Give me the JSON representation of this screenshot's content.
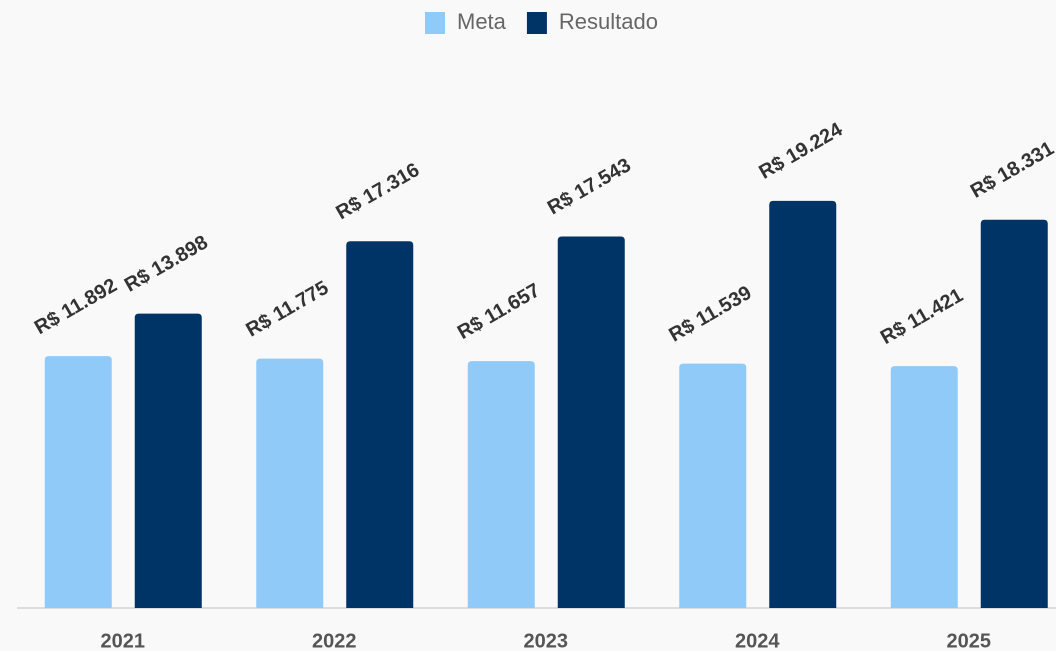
{
  "chart_data": {
    "type": "bar",
    "categories": [
      "2021",
      "2022",
      "2023",
      "2024",
      "2025"
    ],
    "series": [
      {
        "name": "Meta",
        "color": "#90caf9",
        "values": [
          11892,
          11775,
          11657,
          11539,
          11421
        ],
        "value_labels": [
          "R$ 11.892",
          "R$ 11.775",
          "R$ 11.657",
          "R$ 11.539",
          "R$ 11.421"
        ]
      },
      {
        "name": "Resultado",
        "color": "#003366",
        "values": [
          13898,
          17316,
          17543,
          19224,
          18331
        ],
        "value_labels": [
          "R$ 13.898",
          "R$ 17.316",
          "R$ 17.543",
          "R$ 19.224",
          "R$ 18.331"
        ]
      }
    ],
    "ylim": [
      0,
      28000
    ],
    "legend": "top"
  }
}
